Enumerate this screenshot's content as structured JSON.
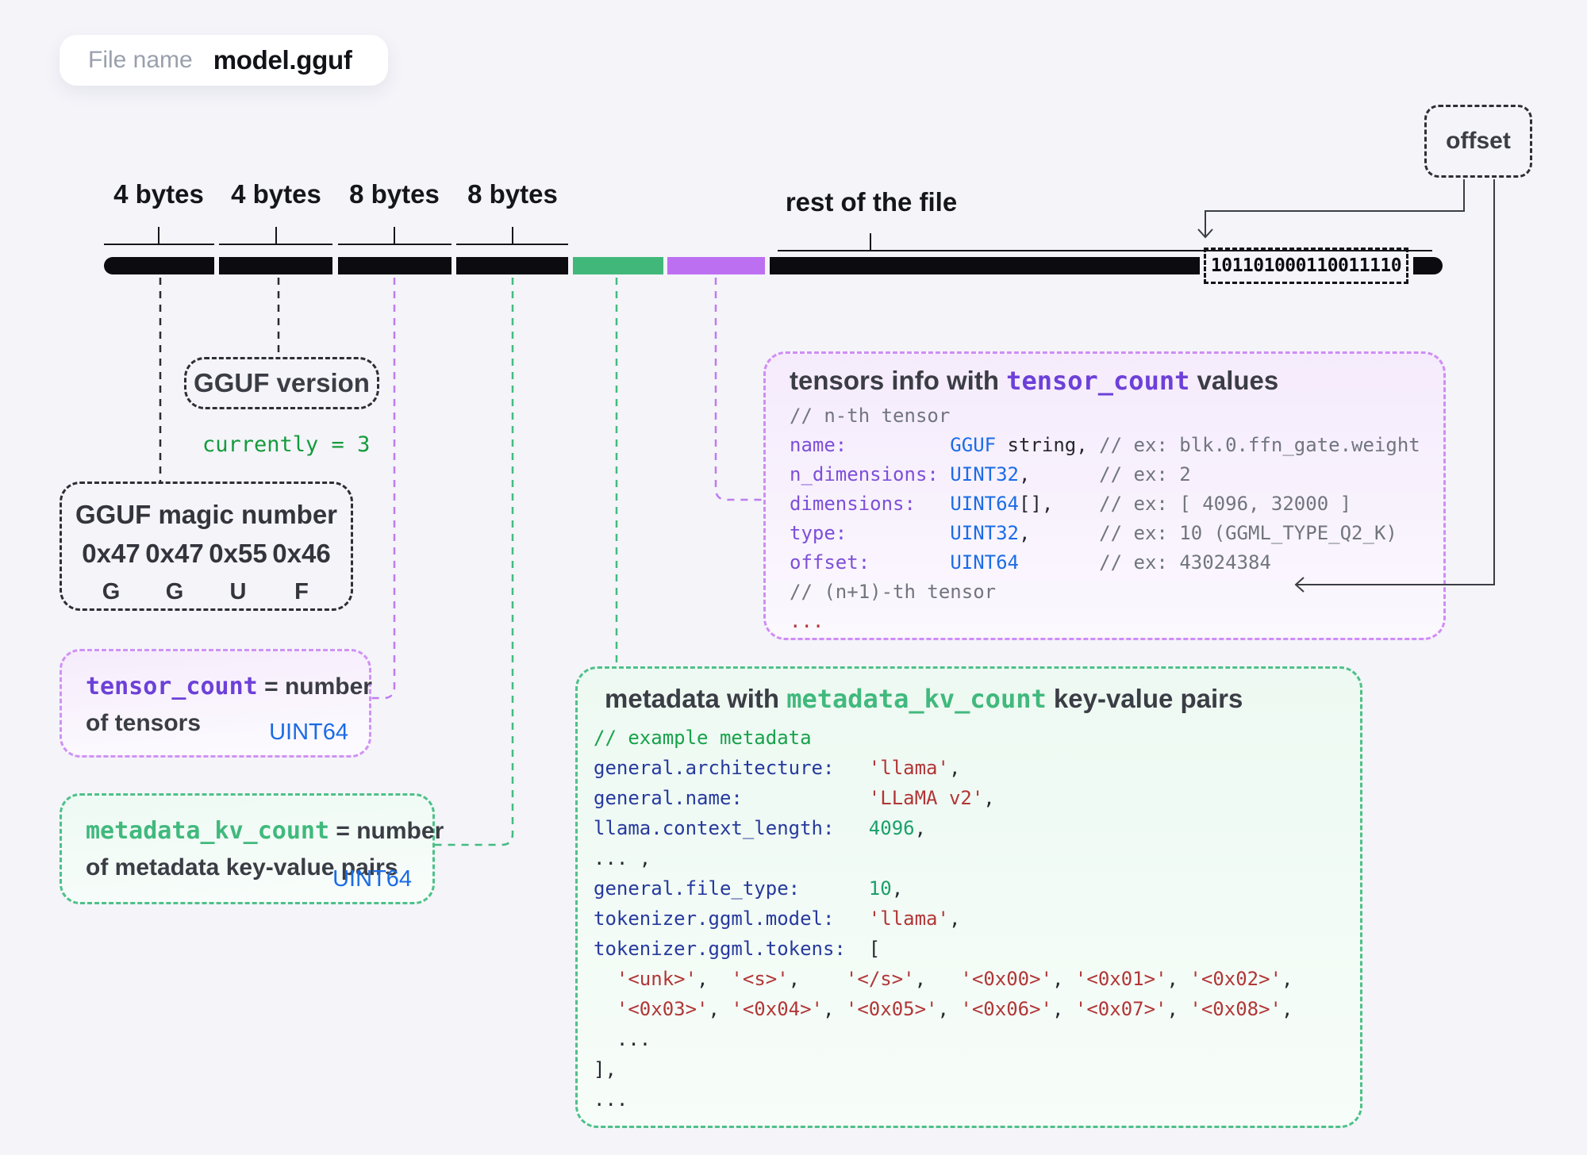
{
  "colors": {
    "background": "#f4f4f9",
    "bar_black": "#0c0c10",
    "segment_green": "#41b87a",
    "segment_purple": "#bd6ff2",
    "type_blue": "#1b6ce5",
    "key_navy": "#263a9d",
    "string_red": "#b13636",
    "value_green": "#1aa06b",
    "comment_gray": "#71757f",
    "comment_green": "#17a24a",
    "mono_purple": "#6d40d8",
    "mono_green": "#41b97d"
  },
  "file_pill": {
    "label": "File name",
    "value": "model.gguf"
  },
  "offset_box": {
    "label": "offset"
  },
  "byte_bar": {
    "segment_labels": [
      "4 bytes",
      "4 bytes",
      "8 bytes",
      "8 bytes"
    ],
    "rest_label": "rest of the file",
    "binary_value": "101101000110011110"
  },
  "version_box": {
    "title": "GGUF version",
    "note": "currently = 3"
  },
  "magic_box": {
    "title": "GGUF magic number",
    "hex_bytes": [
      "0x47",
      "0x47",
      "0x55",
      "0x46"
    ],
    "chars": [
      "G",
      "G",
      "U",
      "F"
    ]
  },
  "tensor_count_box": {
    "heading": [
      [
        "pm",
        "tensor_count"
      ],
      [
        "dt",
        " = number"
      ]
    ],
    "line2": "of tensors",
    "type_label": "UINT64"
  },
  "metadata_kv_box": {
    "heading": [
      [
        "gm",
        "metadata_kv_count"
      ],
      [
        "dt",
        " = number"
      ]
    ],
    "line2": "of metadata key-value pairs",
    "type_label": "UINT64"
  },
  "tensors_box": {
    "title": [
      [
        "dt",
        "tensors info with "
      ],
      [
        "pm",
        "tensor_count"
      ],
      [
        "dt",
        " values"
      ]
    ],
    "lines": [
      [
        [
          "c",
          "// n-th tensor"
        ]
      ],
      [
        [
          "p",
          "name:"
        ],
        [
          "d",
          "         "
        ],
        [
          "b",
          "GGUF"
        ],
        [
          "d",
          " string, "
        ],
        [
          "c",
          "// ex: blk.0.ffn_gate.weight"
        ]
      ],
      [
        [
          "p",
          "n_dimensions:"
        ],
        [
          "d",
          " "
        ],
        [
          "b",
          "UINT32"
        ],
        [
          "d",
          ",      "
        ],
        [
          "c",
          "// ex: 2"
        ]
      ],
      [
        [
          "p",
          "dimensions:"
        ],
        [
          "d",
          "   "
        ],
        [
          "b",
          "UINT64"
        ],
        [
          "d",
          "[],    "
        ],
        [
          "c",
          "// ex: [ 4096, 32000 ]"
        ]
      ],
      [
        [
          "p",
          "type:"
        ],
        [
          "d",
          "         "
        ],
        [
          "b",
          "UINT32"
        ],
        [
          "d",
          ",      "
        ],
        [
          "c",
          "// ex: 10 (GGML_TYPE_Q2_K)"
        ]
      ],
      [
        [
          "p",
          "offset:"
        ],
        [
          "d",
          "       "
        ],
        [
          "b",
          "UINT64"
        ],
        [
          "d",
          "       "
        ],
        [
          "c",
          "// ex: 43024384"
        ]
      ],
      [
        [
          "c",
          "// (n+1)-th tensor"
        ]
      ],
      [
        [
          "r",
          "..."
        ]
      ]
    ]
  },
  "metadata_box": {
    "title": [
      [
        "dt",
        "metadata with "
      ],
      [
        "gm",
        "metadata_kv_count"
      ],
      [
        "dt",
        " key-value pairs"
      ]
    ],
    "lines": [
      [
        [
          "g",
          "// example metadata"
        ]
      ],
      [
        [
          "k",
          "general.architecture:"
        ],
        [
          "d",
          "   "
        ],
        [
          "s",
          "'llama'"
        ],
        [
          "d",
          ","
        ]
      ],
      [
        [
          "k",
          "general.name:"
        ],
        [
          "d",
          "           "
        ],
        [
          "s",
          "'LLaMA v2'"
        ],
        [
          "d",
          ","
        ]
      ],
      [
        [
          "k",
          "llama.context_length:"
        ],
        [
          "d",
          "   "
        ],
        [
          "v",
          "4096"
        ],
        [
          "d",
          ","
        ]
      ],
      [
        [
          "d",
          "... ,"
        ]
      ],
      [
        [
          "k",
          "general.file_type:"
        ],
        [
          "d",
          "      "
        ],
        [
          "v",
          "10"
        ],
        [
          "d",
          ","
        ]
      ],
      [
        [
          "k",
          "tokenizer.ggml.model:"
        ],
        [
          "d",
          "   "
        ],
        [
          "s",
          "'llama'"
        ],
        [
          "d",
          ","
        ]
      ],
      [
        [
          "k",
          "tokenizer.ggml.tokens:"
        ],
        [
          "d",
          "  ["
        ]
      ],
      [
        [
          "d",
          "  "
        ],
        [
          "s",
          "'<unk>'"
        ],
        [
          "d",
          ",  "
        ],
        [
          "s",
          "'<s>'"
        ],
        [
          "d",
          ",    "
        ],
        [
          "s",
          "'</s>'"
        ],
        [
          "d",
          ",   "
        ],
        [
          "s",
          "'<0x00>'"
        ],
        [
          "d",
          ", "
        ],
        [
          "s",
          "'<0x01>'"
        ],
        [
          "d",
          ", "
        ],
        [
          "s",
          "'<0x02>'"
        ],
        [
          "d",
          ","
        ]
      ],
      [
        [
          "d",
          "  "
        ],
        [
          "s",
          "'<0x03>'"
        ],
        [
          "d",
          ", "
        ],
        [
          "s",
          "'<0x04>'"
        ],
        [
          "d",
          ", "
        ],
        [
          "s",
          "'<0x05>'"
        ],
        [
          "d",
          ", "
        ],
        [
          "s",
          "'<0x06>'"
        ],
        [
          "d",
          ", "
        ],
        [
          "s",
          "'<0x07>'"
        ],
        [
          "d",
          ", "
        ],
        [
          "s",
          "'<0x08>'"
        ],
        [
          "d",
          ","
        ]
      ],
      [
        [
          "d",
          "  ..."
        ]
      ],
      [
        [
          "d",
          "],"
        ]
      ],
      [
        [
          "d",
          "..."
        ]
      ]
    ]
  }
}
